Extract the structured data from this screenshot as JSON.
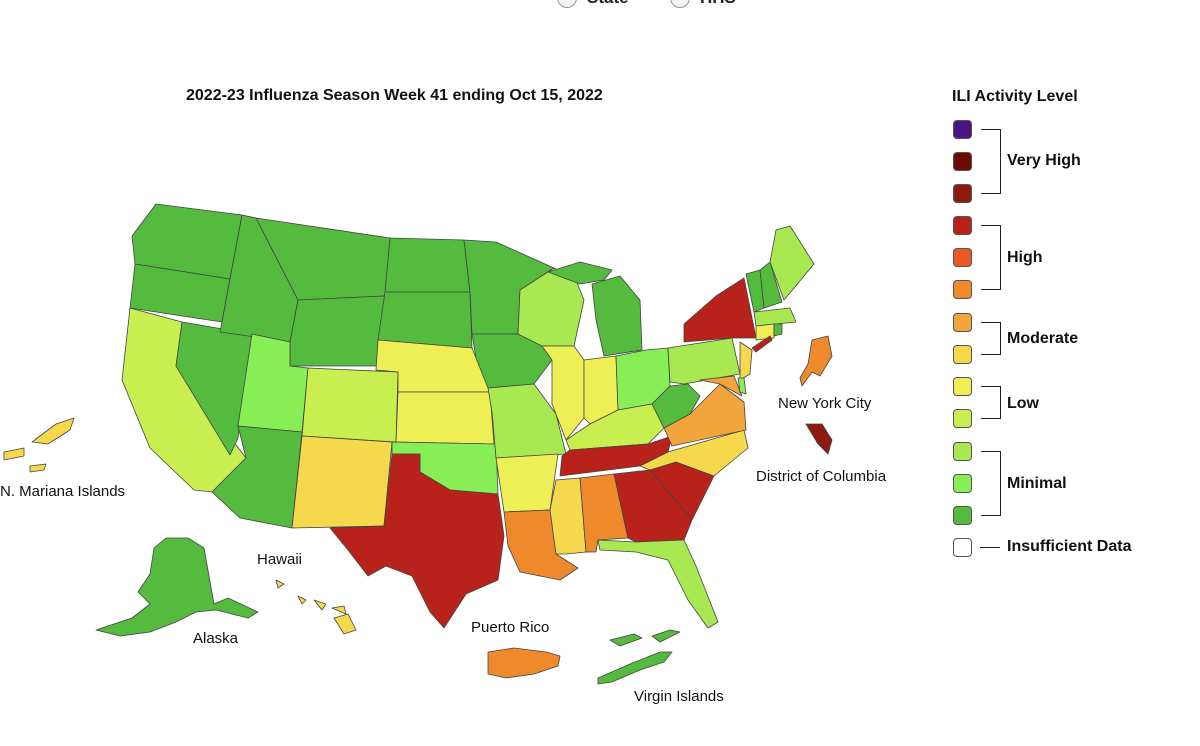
{
  "title": "2022-23 Influenza Season Week 41 ending Oct 15, 2022",
  "view_options": [
    "State",
    "HHS"
  ],
  "legend": {
    "title": "ILI Activity Level",
    "groups": [
      {
        "label": "Very High",
        "colors": [
          "#4a1486",
          "#6e0a05",
          "#8c1a0e"
        ]
      },
      {
        "label": "High",
        "colors": [
          "#b8221a",
          "#e85a24",
          "#ee8a2c"
        ]
      },
      {
        "label": "Moderate",
        "colors": [
          "#f2a53c",
          "#f5d84c"
        ]
      },
      {
        "label": "Low",
        "colors": [
          "#eeee55",
          "#c8ee50"
        ]
      },
      {
        "label": "Minimal",
        "colors": [
          "#a8e850",
          "#88ee55",
          "#55bb3e"
        ]
      }
    ],
    "insufficient": {
      "label": "Insufficient Data",
      "color": "#ffffff"
    }
  },
  "labels": {
    "new_york_city": "New York City",
    "dc": "District of Columbia",
    "n_mariana": "N. Mariana Islands",
    "hawaii": "Hawaii",
    "alaska": "Alaska",
    "puerto_rico": "Puerto Rico",
    "virgin_islands": "Virgin Islands"
  },
  "colors": {
    "minimal_dark": "#55bb3e",
    "minimal_mid": "#88ee55",
    "minimal_light": "#a8e850",
    "low_light": "#c8ee50",
    "low": "#eeee55",
    "moderate_yellow": "#f5d84c",
    "moderate": "#f2a53c",
    "high_orange": "#ee8a2c",
    "high_red": "#b8221a",
    "very_high": "#8c1a0e"
  }
}
